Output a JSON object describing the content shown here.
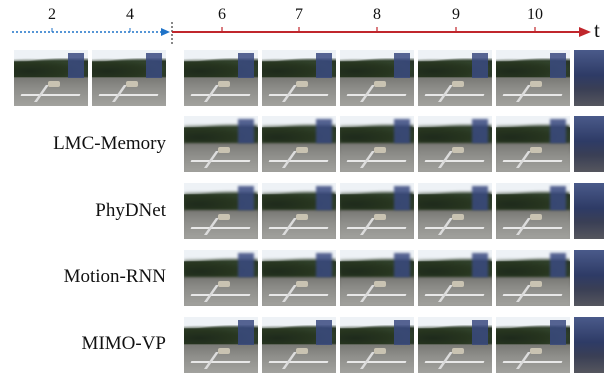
{
  "timeline": {
    "ticks": [
      "2",
      "4",
      "6",
      "7",
      "8",
      "9",
      "10"
    ],
    "axis_label": "t",
    "input_color": "#1f73c8",
    "predict_color": "#c0262c"
  },
  "rows": [
    {
      "label": ""
    },
    {
      "label": "LMC-Memory"
    },
    {
      "label": "PhyDNet"
    },
    {
      "label": "Motion-RNN"
    },
    {
      "label": "MIMO-VP"
    }
  ]
}
